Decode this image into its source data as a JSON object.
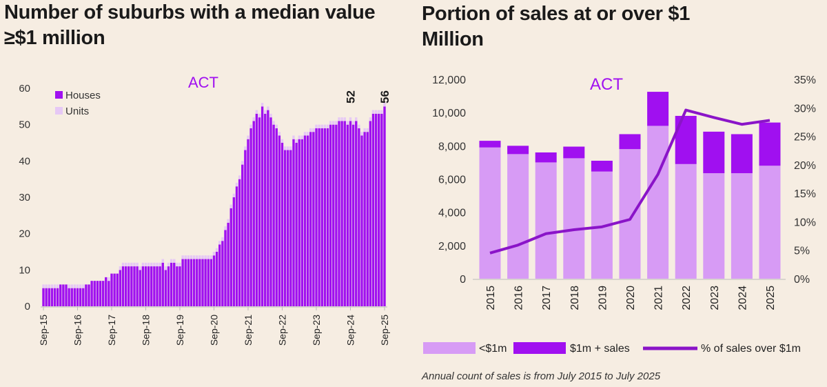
{
  "chart_data": [
    {
      "type": "bar",
      "stacked": true,
      "title": "Number of suburbs with a median value ≥$1 million",
      "annotation": "ACT",
      "x_tick_labels": [
        "Sep-15",
        "Sep-16",
        "Sep-17",
        "Sep-18",
        "Sep-19",
        "Sep-20",
        "Sep-21",
        "Sep-22",
        "Sep-23",
        "Sep-24",
        "Sep-25"
      ],
      "frequency": "monthly",
      "ylim": [
        0,
        60
      ],
      "y_ticks": [
        0,
        10,
        20,
        30,
        40,
        50,
        60
      ],
      "legend": "top-left",
      "data_labels": [
        {
          "x": "Sep-24",
          "value": "52"
        },
        {
          "x": "Sep-25",
          "value": "56"
        }
      ],
      "series": [
        {
          "name": "Houses",
          "color": "#a010f0",
          "values": [
            5,
            5,
            5,
            5,
            5,
            5,
            6,
            6,
            6,
            5,
            5,
            5,
            5,
            5,
            5,
            6,
            6,
            7,
            7,
            7,
            7,
            7,
            8,
            7,
            9,
            9,
            9,
            10,
            11,
            11,
            11,
            11,
            11,
            11,
            10,
            11,
            11,
            11,
            11,
            11,
            11,
            11,
            12,
            10,
            11,
            12,
            12,
            11,
            11,
            13,
            13,
            13,
            13,
            13,
            13,
            13,
            13,
            13,
            13,
            13,
            14,
            15,
            17,
            18,
            21,
            23,
            27,
            30,
            33,
            35,
            39,
            43,
            46,
            49,
            51,
            53,
            52,
            55,
            53,
            54,
            52,
            50,
            49,
            47,
            45,
            43,
            43,
            43,
            46,
            45,
            46,
            46,
            47,
            47,
            48,
            48,
            49,
            49,
            49,
            49,
            49,
            50,
            50,
            50,
            51,
            51,
            51,
            50,
            51,
            50,
            51,
            49,
            47,
            48,
            48,
            51,
            53,
            53,
            53,
            53,
            55
          ]
        },
        {
          "name": "Units",
          "color": "#e6c8f5",
          "values": [
            1,
            1,
            1,
            1,
            1,
            1,
            0,
            0,
            0,
            1,
            1,
            1,
            1,
            1,
            1,
            0,
            0,
            0,
            0,
            0,
            0,
            0,
            0,
            1,
            0,
            0,
            0,
            1,
            1,
            1,
            1,
            1,
            1,
            1,
            1,
            1,
            1,
            1,
            1,
            1,
            1,
            1,
            1,
            1,
            1,
            1,
            1,
            1,
            1,
            1,
            1,
            1,
            1,
            1,
            1,
            1,
            1,
            1,
            1,
            1,
            1,
            1,
            1,
            1,
            1,
            1,
            1,
            1,
            1,
            1,
            1,
            1,
            1,
            1,
            1,
            1,
            1,
            1,
            1,
            1,
            1,
            1,
            1,
            1,
            1,
            1,
            1,
            1,
            1,
            1,
            1,
            1,
            1,
            1,
            1,
            1,
            1,
            1,
            1,
            1,
            1,
            1,
            1,
            1,
            1,
            1,
            1,
            1,
            1,
            1,
            1,
            1,
            1,
            1,
            1,
            1,
            1,
            1,
            1,
            1,
            1
          ]
        }
      ]
    },
    {
      "type": "bar",
      "stacked": true,
      "title": "Portion of sales at or over $1 Million",
      "annotation": "ACT",
      "categories": [
        "2015",
        "2016",
        "2017",
        "2018",
        "2019",
        "2020",
        "2021",
        "2022",
        "2023",
        "2024",
        "2025"
      ],
      "ylim": [
        0,
        12000
      ],
      "y_ticks": [
        "0",
        "2,000",
        "4,000",
        "6,000",
        "8,000",
        "10,000",
        "12,000"
      ],
      "y2lim": [
        0,
        35
      ],
      "y2_ticks": [
        "0%",
        "5%",
        "10%",
        "15%",
        "20%",
        "25%",
        "30%",
        "35%"
      ],
      "legend": "bottom",
      "series": [
        {
          "name": "<$1m",
          "type": "bar",
          "color": "#d79bf5",
          "values": [
            7900,
            7500,
            7000,
            7250,
            6450,
            7800,
            9200,
            6900,
            6350,
            6350,
            6800
          ]
        },
        {
          "name": "$1m + sales",
          "type": "bar",
          "color": "#a010f0",
          "values": [
            400,
            500,
            600,
            700,
            650,
            900,
            2050,
            2900,
            2500,
            2350,
            2600
          ]
        },
        {
          "name": "% of sales over $1m",
          "type": "line",
          "axis": "right",
          "color": "#8a14c8",
          "values": [
            4.5,
            5.9,
            7.9,
            8.6,
            9.1,
            10.4,
            18.3,
            29.6,
            28.3,
            27.1,
            27.8
          ]
        }
      ],
      "footnote": "Annual count of sales is from July 2015 to July 2025"
    }
  ]
}
